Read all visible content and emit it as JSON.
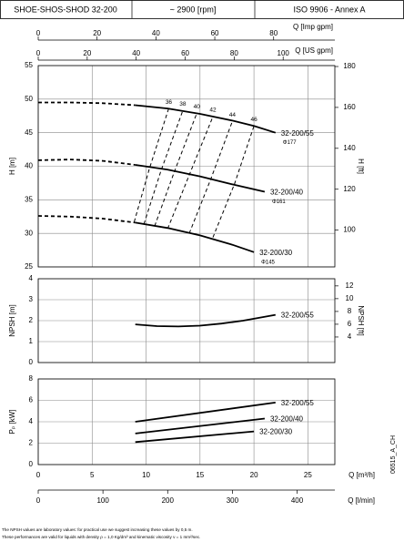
{
  "header": [
    "SHOE-SHOS-SHOD 32-200",
    "~ 2900 [rpm]",
    "ISO 9906 - Annex A"
  ],
  "footnotes": [
    "The NPSH values are laboratory values: for practical use we suggest increasing these values by 0,5 m.",
    "These performances are valid for liquids with density ρ = 1,0 Kg/dm³ and kinematic viscosity ν = 1 mm²/sec."
  ],
  "code": "06515_A_CH",
  "chart_data": [
    {
      "type": "line",
      "ylabel": "H [m]",
      "y2label": "H [ft]",
      "color": "#000000",
      "grid": true,
      "xlim": [
        0,
        27.5
      ],
      "xticks": [
        0,
        5,
        10,
        15,
        20,
        25
      ],
      "ylim": [
        25,
        55
      ],
      "yticks": [
        25,
        30,
        35,
        40,
        45,
        50,
        55
      ],
      "y2lim": [
        82.02,
        180.45
      ],
      "y2ticks": [
        100,
        120,
        140,
        160,
        180
      ],
      "top_axes": [
        {
          "label": "Q [Imp gpm]",
          "lim": [
            0,
            100.8
          ],
          "ticks": [
            0,
            20,
            40,
            60,
            80
          ]
        },
        {
          "label": "Q [US gpm]",
          "lim": [
            0,
            121.1
          ],
          "ticks": [
            0,
            20,
            40,
            60,
            80,
            100
          ]
        }
      ],
      "series": [
        {
          "dashed": true,
          "x": [
            0,
            3,
            6,
            9
          ],
          "values": [
            49.5,
            49.5,
            49.4,
            49.1
          ]
        },
        {
          "name": "32-200/55",
          "annotation": "Φ177",
          "x": [
            9,
            12,
            15,
            18,
            20,
            22
          ],
          "values": [
            49.1,
            48.6,
            47.8,
            46.8,
            46,
            45
          ]
        },
        {
          "dashed": true,
          "x": [
            0,
            3,
            6,
            9
          ],
          "values": [
            40.9,
            41,
            40.8,
            40.2
          ]
        },
        {
          "name": "32-200/40",
          "annotation": "Φ161",
          "x": [
            9,
            12,
            15,
            18,
            21
          ],
          "values": [
            40.2,
            39.5,
            38.5,
            37.3,
            36.2
          ]
        },
        {
          "dashed": true,
          "x": [
            0,
            3,
            6,
            9
          ],
          "values": [
            32.6,
            32.5,
            32.2,
            31.6
          ]
        },
        {
          "name": "32-200/30",
          "annotation": "Φ145",
          "x": [
            9,
            12,
            15,
            18,
            20
          ],
          "values": [
            31.6,
            30.8,
            29.7,
            28.3,
            27.2
          ]
        }
      ],
      "efficiency_curves": [
        {
          "label": "36",
          "x": [
            8.9,
            10.3,
            12.1
          ],
          "values": [
            31.7,
            39.6,
            48.6
          ]
        },
        {
          "label": "38",
          "x": [
            9.8,
            11.4,
            13.4
          ],
          "values": [
            31.4,
            39.4,
            48.3
          ]
        },
        {
          "label": "40",
          "x": [
            10.8,
            12.6,
            14.7
          ],
          "values": [
            31.1,
            39.1,
            47.9
          ]
        },
        {
          "label": "42",
          "x": [
            12,
            14,
            16.2
          ],
          "values": [
            30.7,
            38.7,
            47.4
          ]
        },
        {
          "label": "44",
          "x": [
            14,
            16,
            18
          ],
          "values": [
            30,
            38.1,
            46.7
          ]
        },
        {
          "label": "46",
          "x": [
            16.2,
            18.2,
            20
          ],
          "values": [
            29.4,
            37.4,
            46
          ]
        }
      ]
    },
    {
      "type": "line",
      "ylabel": "NPSH [m]",
      "y2label": "NPSH [ft]",
      "color": "#000000",
      "grid": true,
      "xlim": [
        0,
        27.5
      ],
      "xticks": [
        0,
        5,
        10,
        15,
        20,
        25
      ],
      "ylim": [
        0,
        4
      ],
      "yticks": [
        0,
        1,
        2,
        3,
        4
      ],
      "y2lim": [
        0,
        13.12
      ],
      "y2ticks": [
        4,
        6,
        8,
        10,
        12
      ],
      "series": [
        {
          "name": "32-200/55",
          "x": [
            9,
            11,
            13,
            15,
            17,
            19,
            22
          ],
          "values": [
            1.82,
            1.74,
            1.72,
            1.76,
            1.86,
            2.0,
            2.28
          ]
        }
      ]
    },
    {
      "type": "line",
      "ylabel": "Pₚ [kW]",
      "color": "#000000",
      "grid": true,
      "xlim": [
        0,
        27.5
      ],
      "xticks": [
        0,
        5,
        10,
        15,
        20,
        25
      ],
      "xlabel": "Q [m³/h]",
      "ylim": [
        0,
        8
      ],
      "yticks": [
        0,
        2,
        4,
        6,
        8
      ],
      "bottom_axes": [
        {
          "label": "Q [l/min]",
          "lim": [
            0,
            458.3
          ],
          "ticks": [
            0,
            100,
            200,
            300,
            400
          ]
        }
      ],
      "series": [
        {
          "name": "32-200/55",
          "x": [
            9,
            22
          ],
          "values": [
            4.0,
            5.8
          ]
        },
        {
          "name": "32-200/40",
          "x": [
            9,
            21
          ],
          "values": [
            2.9,
            4.3
          ]
        },
        {
          "name": "32-200/30",
          "x": [
            9,
            20
          ],
          "values": [
            2.1,
            3.1
          ]
        }
      ]
    }
  ]
}
